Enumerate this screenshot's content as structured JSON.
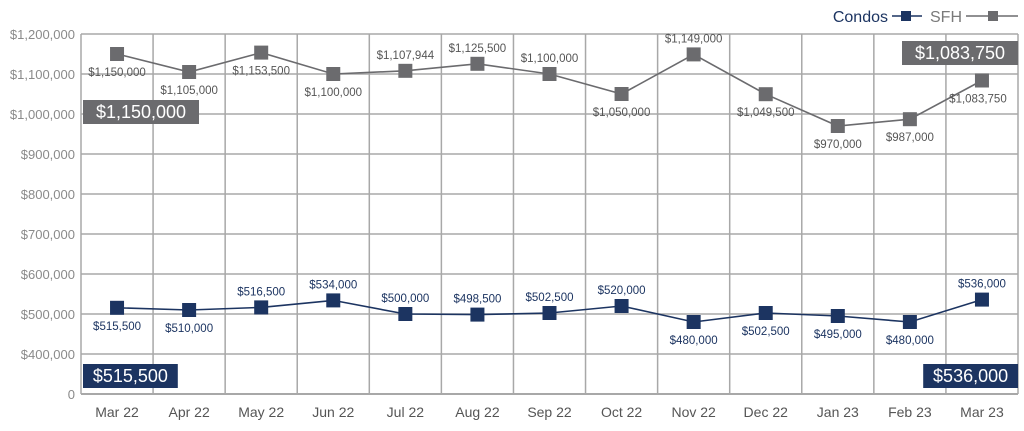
{
  "chart_data": {
    "type": "line",
    "categories": [
      "Mar 22",
      "Apr 22",
      "May 22",
      "Jun 22",
      "Jul 22",
      "Aug 22",
      "Sep 22",
      "Oct 22",
      "Nov 22",
      "Dec 22",
      "Jan 23",
      "Feb 23",
      "Mar 23"
    ],
    "y_tick_labels": [
      "0",
      "$400,000",
      "$500,000",
      "$600,000",
      "$700,000",
      "$800,000",
      "$900,000",
      "$1,000,000",
      "$1,100,000",
      "$1,200,000"
    ],
    "y_axis_note": "broken axis: 0 then $400,000 to $1,200,000",
    "grid": true,
    "legend_placement": "top-right",
    "series": [
      {
        "name": "Condos",
        "color": "#1c3461",
        "values": [
          515500,
          510000,
          516500,
          534000,
          500000,
          498500,
          502500,
          520000,
          480000,
          502500,
          495000,
          480000,
          536000
        ],
        "labels": [
          "$515,500",
          "$510,000",
          "$516,500",
          "$534,000",
          "$500,000",
          "$498,500",
          "$502,500",
          "$520,000",
          "$480,000",
          "$502,500",
          "$495,000",
          "$480,000",
          "$536,000"
        ],
        "label_pos": [
          "below",
          "below",
          "above",
          "above",
          "above",
          "above",
          "above",
          "above",
          "below",
          "below",
          "below",
          "below",
          "above"
        ],
        "start_badge": "$515,500",
        "end_badge": "$536,000"
      },
      {
        "name": "SFH",
        "color": "#6b6b6e",
        "values": [
          1150000,
          1105000,
          1153500,
          1100000,
          1107944,
          1125500,
          1100000,
          1050000,
          1149000,
          1049500,
          970000,
          987000,
          1083750
        ],
        "labels": [
          "$1,150,000",
          "$1,105,000",
          "$1,153,500",
          "$1,100,000",
          "$1,107,944",
          "$1,125,500",
          "$1,100,000",
          "$1,050,000",
          "$1,149,000",
          "$1,049,500",
          "$970,000",
          "$987,000",
          "$1,083,750"
        ],
        "label_pos": [
          "below",
          "below",
          "below",
          "below",
          "above",
          "above",
          "above",
          "below",
          "above",
          "below",
          "below",
          "below",
          "below"
        ],
        "start_badge": "$1,150,000",
        "end_badge": "$1,083,750"
      }
    ]
  }
}
